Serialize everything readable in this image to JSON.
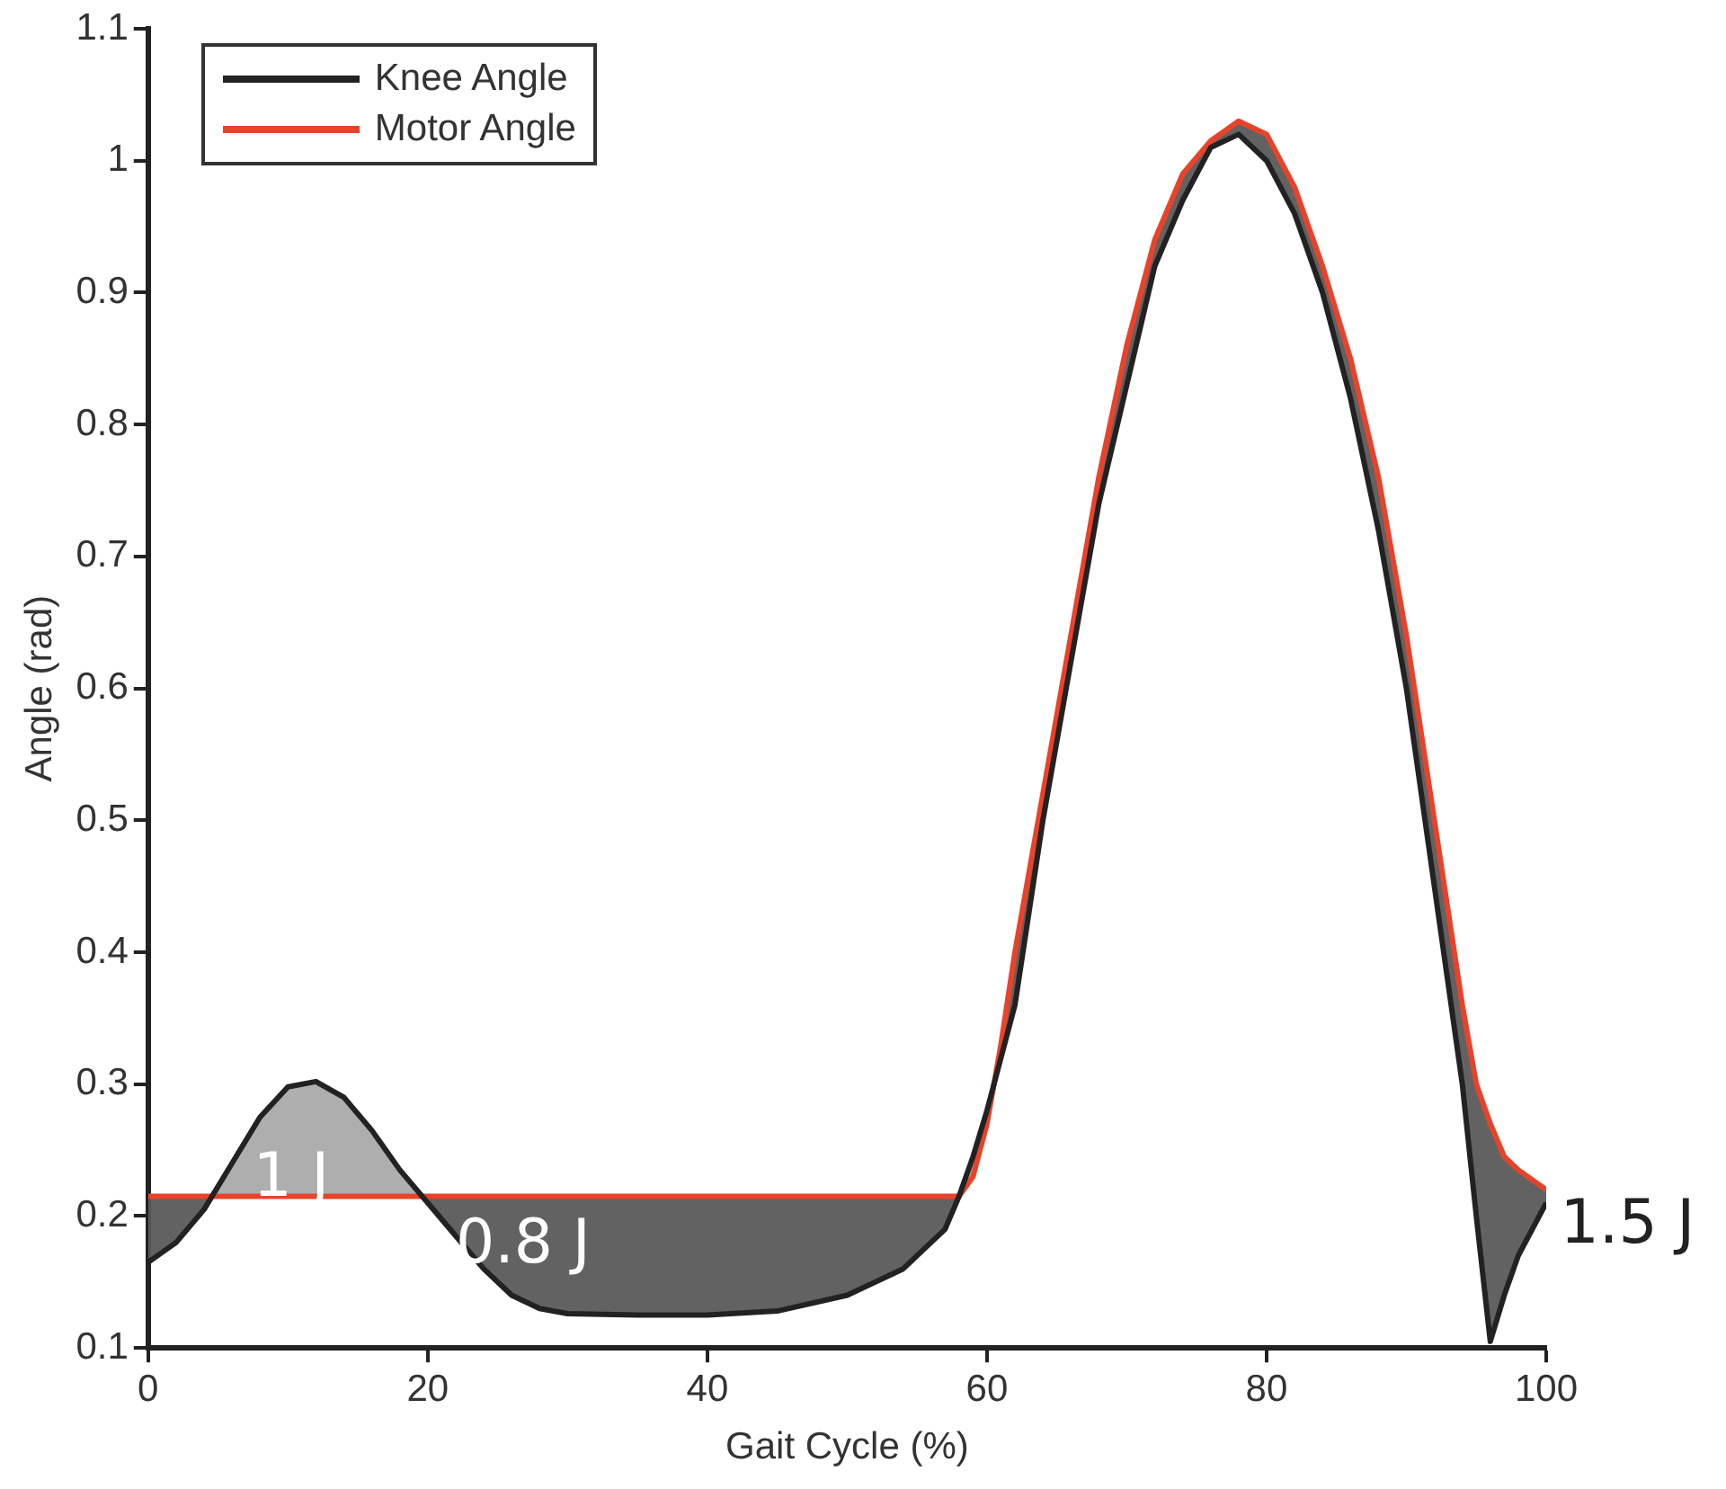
{
  "chart_data": {
    "type": "line",
    "xlabel": "Gait Cycle (%)",
    "ylabel": "Angle (rad)",
    "xlim": [
      0,
      100
    ],
    "xticks": [
      0,
      20,
      40,
      60,
      80,
      100
    ],
    "ylim": [
      0.1,
      1.1
    ],
    "yticks": [
      0.1,
      0.2,
      0.3,
      0.4,
      0.5,
      0.6,
      0.7,
      0.8,
      0.9,
      1,
      1.1
    ],
    "legend": "top left",
    "grid": false,
    "marker": "none",
    "line_style": "solid",
    "x": [
      0,
      2,
      4,
      6,
      8,
      10,
      12,
      14,
      16,
      18,
      20,
      22,
      24,
      26,
      28,
      30,
      35,
      40,
      45,
      50,
      54,
      57,
      58,
      59,
      60,
      61,
      62,
      64,
      66,
      68,
      70,
      72,
      74,
      76,
      78,
      80,
      82,
      84,
      86,
      88,
      90,
      92,
      94,
      95,
      96,
      97,
      98,
      100
    ],
    "series": [
      {
        "name": "Knee Angle",
        "color": "#222222",
        "values": [
          0.165,
          0.18,
          0.205,
          0.24,
          0.275,
          0.298,
          0.302,
          0.29,
          0.265,
          0.235,
          0.21,
          0.185,
          0.16,
          0.14,
          0.13,
          0.126,
          0.125,
          0.125,
          0.128,
          0.14,
          0.16,
          0.19,
          0.215,
          0.245,
          0.28,
          0.32,
          0.36,
          0.5,
          0.62,
          0.74,
          0.83,
          0.92,
          0.97,
          1.01,
          1.02,
          1,
          0.96,
          0.9,
          0.82,
          0.72,
          0.6,
          0.45,
          0.3,
          0.2,
          0.105,
          0.14,
          0.17,
          0.21
        ],
        "lower": [
          0.165,
          0.18,
          0.205,
          0.24,
          0.275,
          0.298,
          0.302,
          0.29,
          0.265,
          0.235,
          0.21,
          0.185,
          0.16,
          0.14,
          0.13,
          0.126,
          0.125,
          0.125,
          0.128,
          0.14,
          0.16,
          0.19,
          0.215,
          0.245,
          0.28,
          0.32,
          0.36,
          0.5,
          0.62,
          0.74,
          0.83,
          0.92,
          0.97,
          1.01,
          1.02,
          1,
          0.96,
          0.9,
          0.82,
          0.72,
          0.6,
          0.45,
          0.3,
          0.2,
          0.105,
          0.14,
          0.17,
          0.21
        ],
        "upper": [
          0.215,
          0.215,
          0.215,
          0.215,
          0.215,
          0.215,
          0.215,
          0.215,
          0.215,
          0.215,
          0.215,
          0.215,
          0.215,
          0.215,
          0.215,
          0.215,
          0.215,
          0.215,
          0.215,
          0.215,
          0.215,
          0.215,
          0.215,
          0.23,
          0.27,
          0.33,
          0.4,
          0.52,
          0.64,
          0.76,
          0.86,
          0.94,
          0.99,
          1.015,
          1.03,
          1.02,
          0.98,
          0.92,
          0.85,
          0.76,
          0.64,
          0.5,
          0.36,
          0.3,
          0.27,
          0.245,
          0.235,
          0.22
        ]
      },
      {
        "name": "Motor Angle",
        "color": "#e8432a",
        "values": [
          0.215,
          0.215,
          0.215,
          0.215,
          0.215,
          0.215,
          0.215,
          0.215,
          0.215,
          0.215,
          0.215,
          0.215,
          0.215,
          0.215,
          0.215,
          0.215,
          0.215,
          0.215,
          0.215,
          0.215,
          0.215,
          0.215,
          0.215,
          0.23,
          0.27,
          0.33,
          0.4,
          0.52,
          0.64,
          0.76,
          0.86,
          0.94,
          0.99,
          1.015,
          1.03,
          1.02,
          0.98,
          0.92,
          0.85,
          0.76,
          0.64,
          0.5,
          0.36,
          0.3,
          0.27,
          0.245,
          0.235,
          0.22
        ]
      }
    ],
    "annotations": [
      "1 J",
      "0.8 J",
      "1.5 J"
    ]
  }
}
